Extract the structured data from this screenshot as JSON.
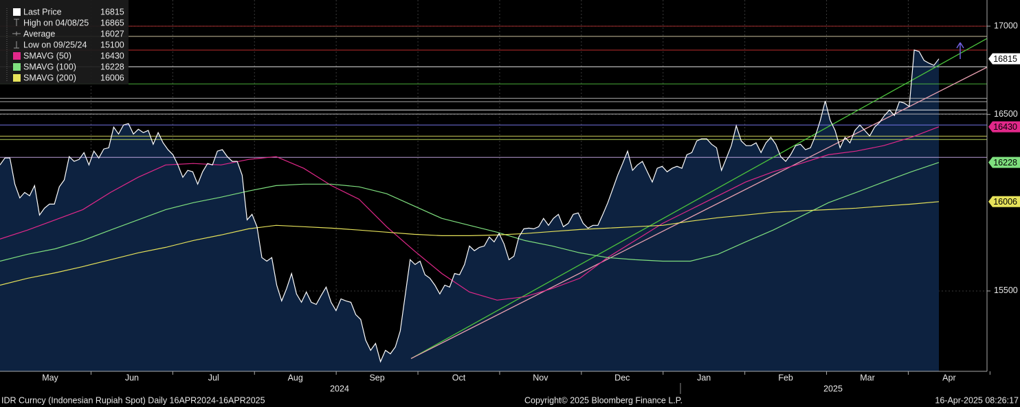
{
  "chart_data": {
    "type": "line",
    "ylim": [
      15045,
      17148
    ],
    "yticks": [
      15500,
      16500,
      17000
    ],
    "months": [
      "May",
      "Jun",
      "Jul",
      "Aug",
      "Sep",
      "Oct",
      "Nov",
      "Dec",
      "Jan",
      "Feb",
      "Mar",
      "Apr"
    ],
    "years": [
      "2024",
      "2025"
    ],
    "series": [
      {
        "name": "Last Price",
        "color": "#ffffff",
        "last": 16815,
        "values": [
          16214,
          16253,
          16253,
          16105,
          16027,
          16058,
          16039,
          16097,
          15930,
          15969,
          15992,
          15992,
          16090,
          16129,
          16261,
          16234,
          16245,
          16284,
          16214,
          16292,
          16253,
          16304,
          16311,
          16428,
          16389,
          16440,
          16448,
          16389,
          16416,
          16397,
          16409,
          16331,
          16397,
          16339,
          16300,
          16272,
          16214,
          16144,
          16183,
          16175,
          16105,
          16175,
          16222,
          16214,
          16292,
          16300,
          16261,
          16234,
          16234,
          16156,
          15903,
          15934,
          15864,
          15689,
          15669,
          15689,
          15533,
          15444,
          15514,
          15599,
          15483,
          15436,
          15494,
          15436,
          15424,
          15475,
          15522,
          15436,
          15389,
          15455,
          15444,
          15436,
          15366,
          15339,
          15222,
          15164,
          15203,
          15100,
          15164,
          15144,
          15183,
          15273,
          15475,
          15677,
          15650,
          15669,
          15592,
          15572,
          15533,
          15483,
          15533,
          15522,
          15599,
          15592,
          15650,
          15755,
          15728,
          15747,
          15755,
          15806,
          15778,
          15825,
          15767,
          15677,
          15697,
          15806,
          15852,
          15856,
          15852,
          15864,
          15911,
          15872,
          15911,
          15934,
          15864,
          15883,
          15934,
          15942,
          15883,
          15856,
          15872,
          15872,
          15934,
          16000,
          16078,
          16156,
          16222,
          16292,
          16183,
          16214,
          16234,
          16175,
          16117,
          16195,
          16206,
          16175,
          16195,
          16206,
          16195,
          16272,
          16284,
          16350,
          16362,
          16362,
          16331,
          16311,
          16183,
          16253,
          16323,
          16436,
          16350,
          16323,
          16323,
          16339,
          16284,
          16339,
          16370,
          16331,
          16261,
          16234,
          16272,
          16323,
          16331,
          16300,
          16311,
          16378,
          16467,
          16576,
          16467,
          16409,
          16311,
          16370,
          16339,
          16409,
          16440,
          16409,
          16378,
          16428,
          16455,
          16494,
          16525,
          16494,
          16572,
          16564,
          16545,
          16865,
          16856,
          16806,
          16790,
          16778,
          16815
        ]
      },
      {
        "name": "SMAVG (50)",
        "color": "#e2288a",
        "last": 16430,
        "values": [
          15794,
          15845,
          15903,
          15961,
          16058,
          16144,
          16214,
          16222,
          16214,
          16245,
          16261,
          16195,
          16097,
          16020,
          15864,
          15728,
          15599,
          15494,
          15448,
          15467,
          15514,
          15572,
          15689,
          15786,
          15883,
          15961,
          16039,
          16117,
          16175,
          16222,
          16272,
          16292,
          16323,
          16370,
          16430
        ]
      },
      {
        "name": "SMAVG (100)",
        "color": "#7fe07f",
        "last": 16228,
        "values": [
          15669,
          15708,
          15739,
          15786,
          15845,
          15903,
          15961,
          16000,
          16031,
          16066,
          16097,
          16105,
          16105,
          16090,
          16051,
          15981,
          15911,
          15872,
          15833,
          15786,
          15755,
          15716,
          15689,
          15677,
          15669,
          15669,
          15708,
          15778,
          15845,
          15922,
          16000,
          16058,
          16117,
          16175,
          16228
        ]
      },
      {
        "name": "SMAVG (200)",
        "color": "#e6e25a",
        "last": 16006,
        "values": [
          15533,
          15572,
          15603,
          15638,
          15677,
          15716,
          15747,
          15786,
          15817,
          15852,
          15872,
          15864,
          15856,
          15845,
          15833,
          15821,
          15813,
          15813,
          15817,
          15825,
          15837,
          15848,
          15856,
          15864,
          15872,
          15895,
          15915,
          15930,
          15946,
          15954,
          15961,
          15969,
          15981,
          15992,
          16006
        ]
      }
    ],
    "stats": [
      {
        "name": "High on 04/08/25",
        "value": 16865
      },
      {
        "name": "Average",
        "value": 16027
      },
      {
        "name": "Low on 09/25/24",
        "value": 15100
      }
    ],
    "levels": [
      {
        "value": 17000,
        "color": "#b03030"
      },
      {
        "value": 16942,
        "color": "#e0d8b0"
      },
      {
        "value": 16864,
        "color": "#d03030"
      },
      {
        "value": 16770,
        "color": "#ffffff"
      },
      {
        "value": 16673,
        "color": "#50c040"
      },
      {
        "value": 16591,
        "color": "#c0c0c0"
      },
      {
        "value": 16572,
        "color": "#c0c0c0"
      },
      {
        "value": 16525,
        "color": "#ffffff"
      },
      {
        "value": 16502,
        "color": "#c0c0c0"
      },
      {
        "value": 16440,
        "color": "#8080ff"
      },
      {
        "value": 16377,
        "color": "#e0e060"
      },
      {
        "value": 16358,
        "color": "#c0e060"
      },
      {
        "value": 16257,
        "color": "#d0b0f0"
      }
    ],
    "trend_lines": [
      {
        "color": "#4cc43c",
        "values": [
          15117,
          16930
        ]
      },
      {
        "color": "#e8a0b0",
        "values": [
          15117,
          16767
        ]
      }
    ],
    "footer": {
      "left": "IDR Curncy (Indonesian Rupiah Spot)  Daily 16APR2024-16APR2025",
      "center": "Copyright© 2025 Bloomberg Finance L.P.",
      "right": "16-Apr-2025 08:26:17"
    }
  }
}
